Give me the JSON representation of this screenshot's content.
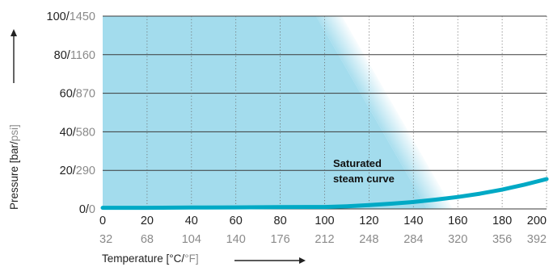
{
  "chart_data": {
    "type": "area",
    "x_label_primary": "Temperature [°C/",
    "x_label_secondary": "°F]",
    "y_label_primary": "Pressure [bar/",
    "y_label_secondary": "psi]",
    "x_ticks_c": [
      "0",
      "20",
      "40",
      "60",
      "80",
      "100",
      "120",
      "140",
      "160",
      "180",
      "200"
    ],
    "x_ticks_f": [
      "32",
      "68",
      "104",
      "140",
      "176",
      "212",
      "248",
      "284",
      "320",
      "356",
      "392"
    ],
    "y_ticks_bar": [
      "0",
      "20",
      "40",
      "60",
      "80",
      "100"
    ],
    "y_ticks_psi": [
      "0",
      "290",
      "580",
      "870",
      "1160",
      "1450"
    ],
    "xlim": [
      0,
      200
    ],
    "ylim": [
      0,
      100
    ],
    "annotation": [
      "Saturated",
      "steam curve"
    ],
    "series": [
      {
        "type": "line",
        "color": "#00a9c5",
        "x": [
          0,
          20,
          40,
          60,
          80,
          100,
          110,
          120,
          130,
          140,
          150,
          160,
          170,
          180,
          190,
          200
        ],
        "y": [
          0.6,
          0.6,
          0.7,
          0.8,
          0.9,
          1.0,
          1.4,
          2.0,
          2.7,
          3.6,
          4.8,
          6.2,
          7.9,
          10.0,
          12.6,
          15.5
        ]
      },
      {
        "type": "area",
        "color": "#a3dced",
        "boundary_x": [
          0,
          102,
          152,
          0
        ],
        "boundary_y": [
          100,
          100,
          0,
          0
        ]
      }
    ],
    "grid": {
      "x": "dotted",
      "y": "solid"
    },
    "legend": "none"
  }
}
